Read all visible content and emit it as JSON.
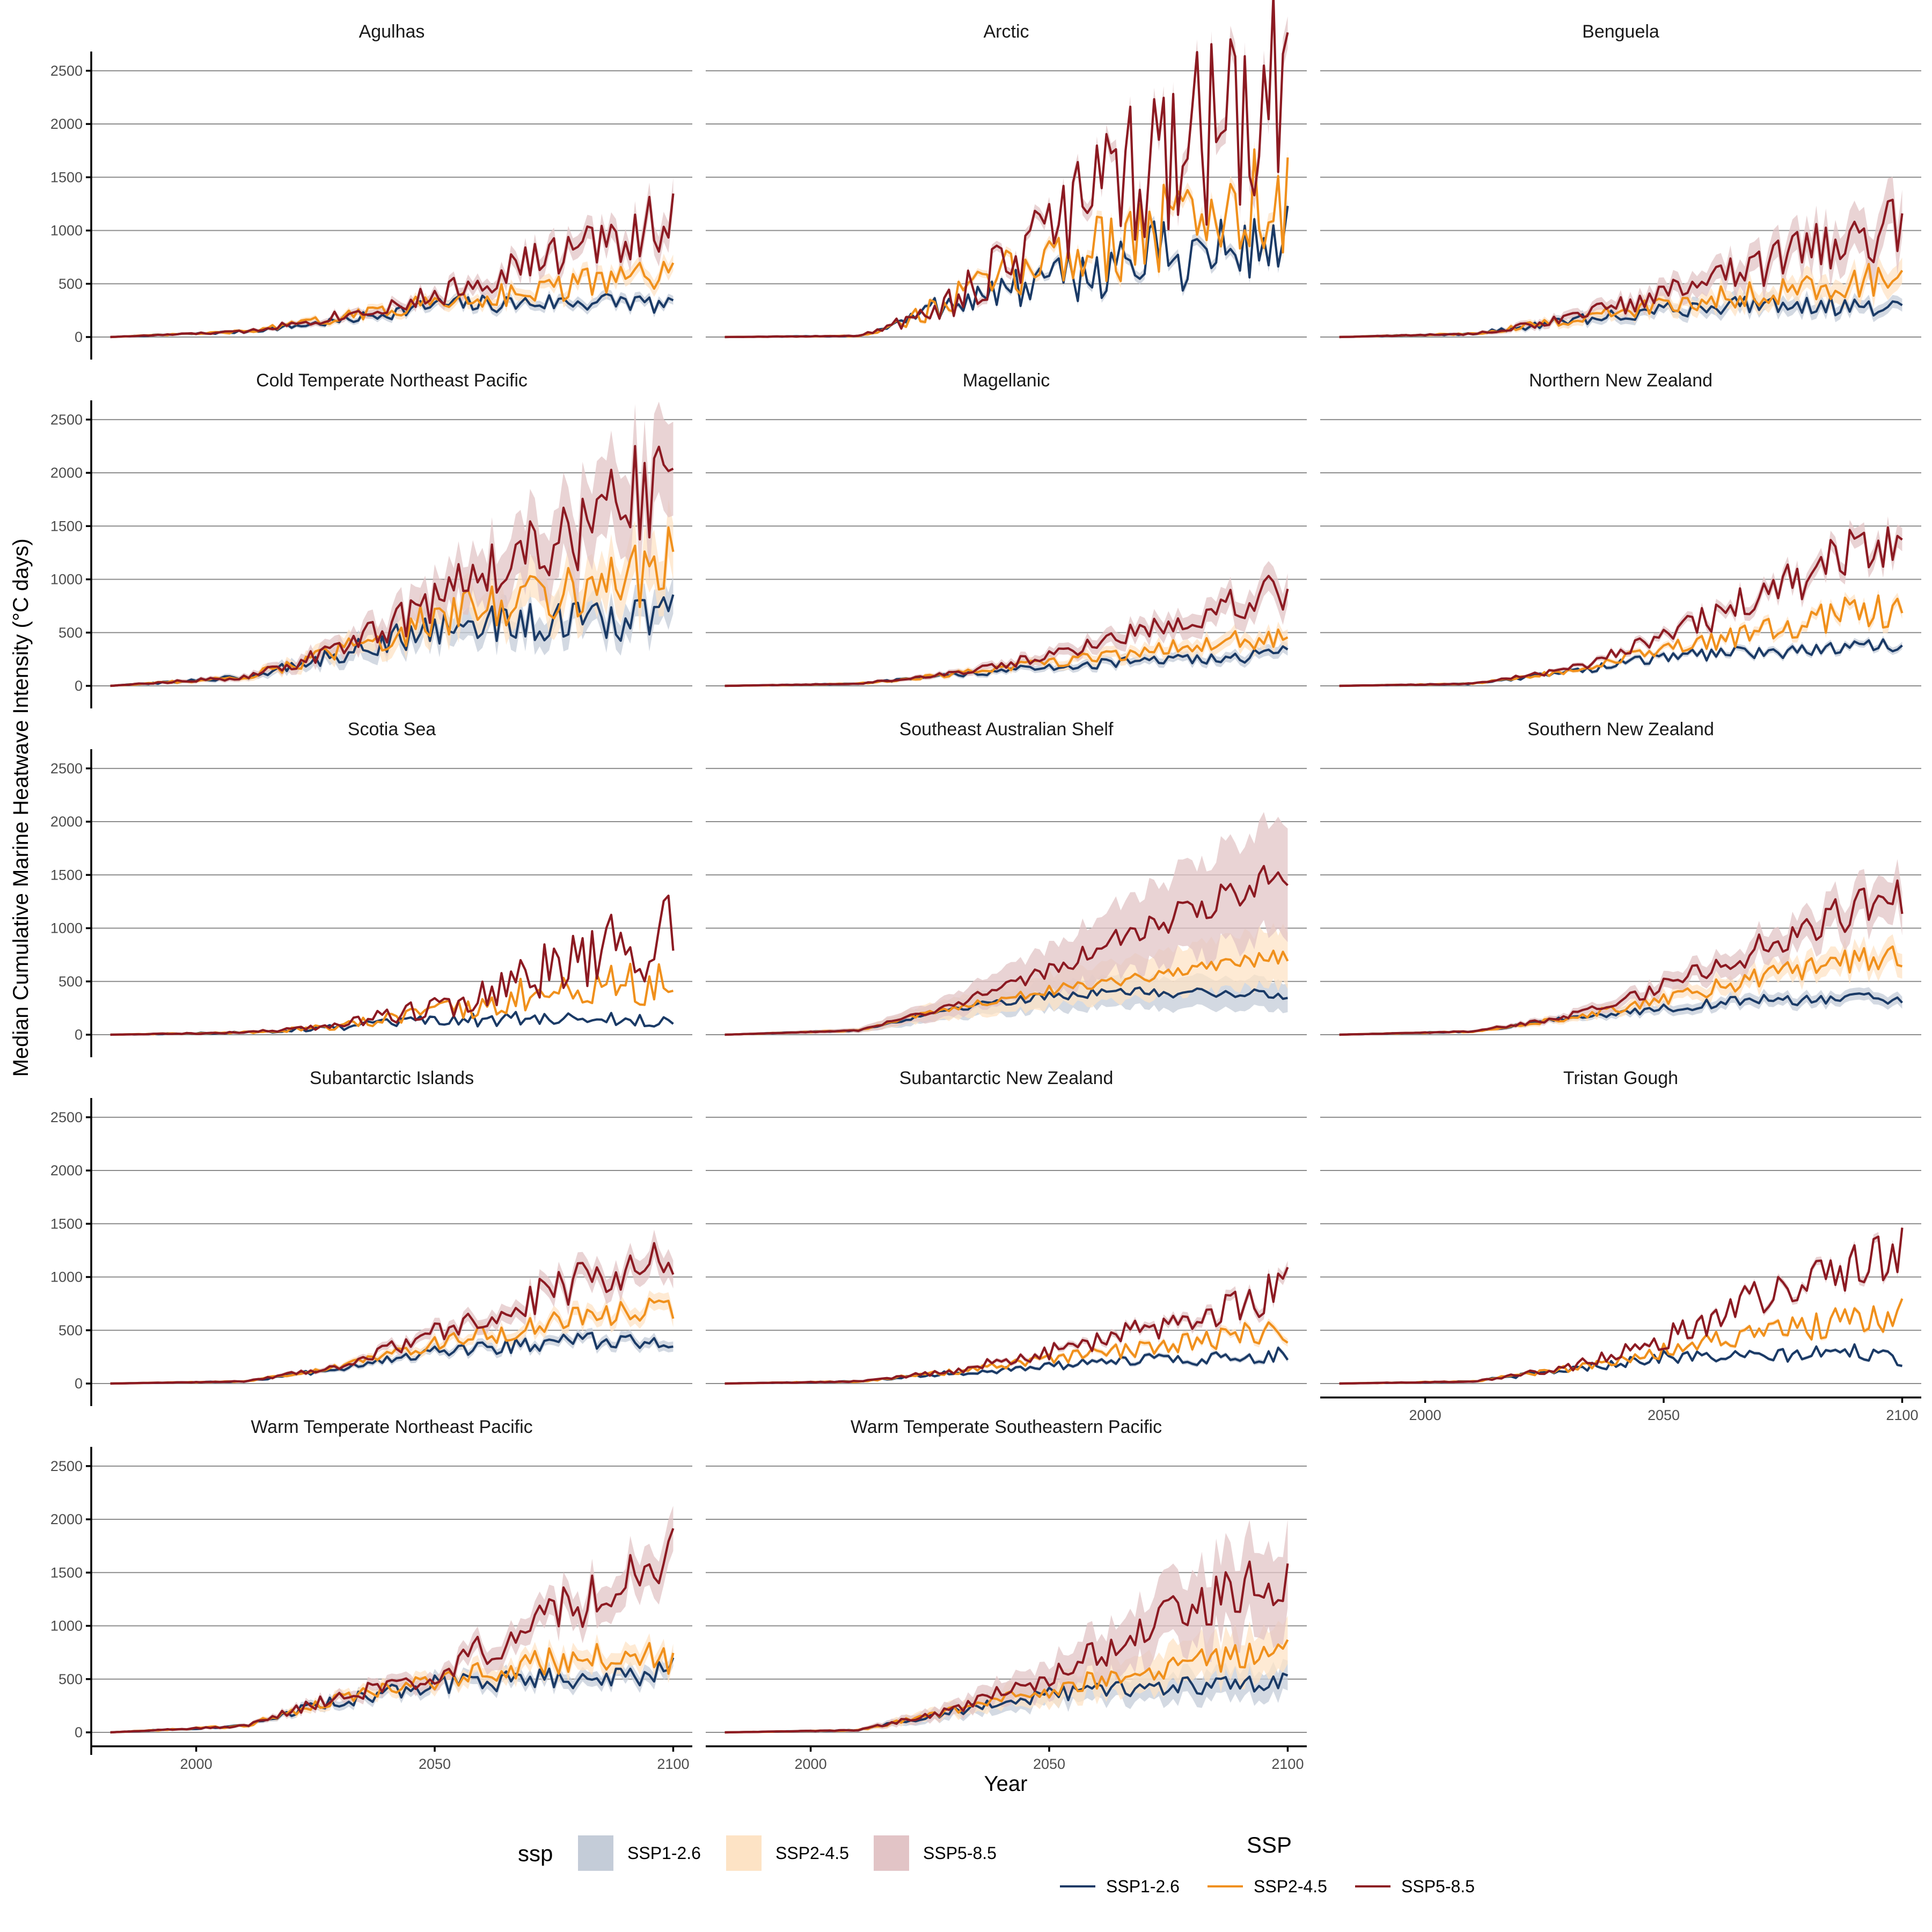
{
  "chart_data": {
    "type": "line",
    "ylabel": "Median Cumulative Marine Heatwave Intensity (°C days)",
    "xlabel": "Year",
    "xlim": [
      1982,
      2100
    ],
    "ylim": [
      0,
      2500
    ],
    "xticks": [
      2000,
      2050,
      2100
    ],
    "yticks": [
      0,
      500,
      1000,
      1500,
      2000,
      2500
    ],
    "grid": "horizontal-major",
    "x_range_description": "annual values 1982-2100",
    "series_names": [
      "SSP1-2.6",
      "SSP2-4.5",
      "SSP5-8.5"
    ],
    "series_colors": {
      "SSP1-2.6": "#1a3a66",
      "SSP2-4.5": "#f0901c",
      "SSP5-8.5": "#8c1a22"
    },
    "ribbon_colors": {
      "SSP1-2.6": "#c4ccd8",
      "SSP2-4.5": "#fde3c5",
      "SSP5-8.5": "#e2c4c6"
    },
    "legend": {
      "ribbon_title": "ssp",
      "line_title": "SSP",
      "labels": [
        "SSP1-2.6",
        "SSP2-4.5",
        "SSP5-8.5"
      ],
      "position": "bottom"
    },
    "panels": [
      {
        "title": "Agulhas",
        "start": 1982,
        "noise": 0.28,
        "band": 0.12,
        "series": [
          {
            "name": "SSP1-2.6",
            "x": [
              1982,
              2010,
              2030,
              2050,
              2070,
              2090,
              2100
            ],
            "y": [
              0,
              50,
              150,
              300,
              320,
              340,
              280
            ]
          },
          {
            "name": "SSP2-4.5",
            "x": [
              1982,
              2010,
              2030,
              2050,
              2070,
              2090,
              2100
            ],
            "y": [
              0,
              50,
              180,
              330,
              430,
              550,
              580
            ]
          },
          {
            "name": "SSP5-8.5",
            "x": [
              1982,
              2010,
              2030,
              2050,
              2070,
              2090,
              2100
            ],
            "y": [
              0,
              50,
              200,
              380,
              700,
              950,
              1150
            ]
          }
        ]
      },
      {
        "title": "Arctic",
        "start": 1982,
        "noise": 0.45,
        "band": 0.06,
        "series": [
          {
            "name": "SSP1-2.6",
            "x": [
              1982,
              2010,
              2020,
              2030,
              2050,
              2070,
              2090,
              2100
            ],
            "y": [
              0,
              10,
              150,
              350,
              500,
              750,
              800,
              950
            ]
          },
          {
            "name": "SSP2-4.5",
            "x": [
              1982,
              2010,
              2020,
              2030,
              2050,
              2070,
              2090,
              2100
            ],
            "y": [
              0,
              10,
              150,
              350,
              750,
              1000,
              1200,
              1350
            ]
          },
          {
            "name": "SSP5-8.5",
            "x": [
              1982,
              2010,
              2020,
              2030,
              2050,
              2070,
              2090,
              2100
            ],
            "y": [
              0,
              10,
              150,
              350,
              1000,
              1600,
              2050,
              2380
            ]
          }
        ]
      },
      {
        "title": "Benguela",
        "start": 1982,
        "noise": 0.3,
        "band": 0.2,
        "series": [
          {
            "name": "SSP1-2.6",
            "x": [
              1982,
              2010,
              2030,
              2050,
              2070,
              2090,
              2100
            ],
            "y": [
              0,
              30,
              150,
              250,
              330,
              280,
              260
            ]
          },
          {
            "name": "SSP2-4.5",
            "x": [
              1982,
              2010,
              2030,
              2050,
              2070,
              2090,
              2100
            ],
            "y": [
              0,
              30,
              160,
              300,
              420,
              520,
              560
            ]
          },
          {
            "name": "SSP5-8.5",
            "x": [
              1982,
              2010,
              2030,
              2050,
              2070,
              2090,
              2100
            ],
            "y": [
              0,
              30,
              170,
              400,
              650,
              950,
              1070
            ]
          }
        ]
      },
      {
        "title": "Cold Temperate Northeast Pacific",
        "start": 1982,
        "noise": 0.3,
        "band": 0.22,
        "series": [
          {
            "name": "SSP1-2.6",
            "x": [
              1982,
              2010,
              2030,
              2050,
              2070,
              2090,
              2100
            ],
            "y": [
              0,
              80,
              300,
              550,
              600,
              600,
              780
            ]
          },
          {
            "name": "SSP2-4.5",
            "x": [
              1982,
              2010,
              2030,
              2050,
              2070,
              2090,
              2100
            ],
            "y": [
              0,
              80,
              320,
              620,
              850,
              1000,
              1180
            ]
          },
          {
            "name": "SSP5-8.5",
            "x": [
              1982,
              2010,
              2030,
              2050,
              2070,
              2090,
              2100
            ],
            "y": [
              0,
              80,
              340,
              800,
              1350,
              1700,
              1970
            ]
          }
        ]
      },
      {
        "title": "Magellanic",
        "start": 1982,
        "noise": 0.22,
        "band": 0.15,
        "series": [
          {
            "name": "SSP1-2.6",
            "x": [
              1982,
              2010,
              2030,
              2050,
              2070,
              2090,
              2100
            ],
            "y": [
              0,
              20,
              100,
              180,
              230,
              270,
              330
            ]
          },
          {
            "name": "SSP2-4.5",
            "x": [
              1982,
              2010,
              2030,
              2050,
              2070,
              2090,
              2100
            ],
            "y": [
              0,
              20,
              110,
              220,
              330,
              430,
              450
            ]
          },
          {
            "name": "SSP5-8.5",
            "x": [
              1982,
              2010,
              2030,
              2050,
              2070,
              2090,
              2100
            ],
            "y": [
              0,
              20,
              120,
              280,
              530,
              800,
              920
            ]
          }
        ]
      },
      {
        "title": "Northern New Zealand",
        "start": 1982,
        "noise": 0.22,
        "band": 0.07,
        "series": [
          {
            "name": "SSP1-2.6",
            "x": [
              1982,
              2010,
              2030,
              2050,
              2070,
              2090,
              2100
            ],
            "y": [
              0,
              20,
              130,
              270,
              330,
              350,
              380
            ]
          },
          {
            "name": "SSP2-4.5",
            "x": [
              1982,
              2010,
              2030,
              2050,
              2070,
              2090,
              2100
            ],
            "y": [
              0,
              20,
              140,
              330,
              500,
              700,
              700
            ]
          },
          {
            "name": "SSP5-8.5",
            "x": [
              1982,
              2010,
              2030,
              2050,
              2070,
              2090,
              2100
            ],
            "y": [
              0,
              20,
              150,
              450,
              850,
              1250,
              1440
            ]
          }
        ]
      },
      {
        "title": "Scotia Sea",
        "start": 1982,
        "noise": 0.45,
        "band": 0,
        "series": [
          {
            "name": "SSP1-2.6",
            "x": [
              1982,
              2010,
              2030,
              2050,
              2070,
              2090,
              2100
            ],
            "y": [
              0,
              20,
              70,
              130,
              150,
              140,
              110
            ]
          },
          {
            "name": "SSP2-4.5",
            "x": [
              1982,
              2010,
              2030,
              2050,
              2070,
              2090,
              2100
            ],
            "y": [
              0,
              20,
              80,
              200,
              380,
              460,
              470
            ]
          },
          {
            "name": "SSP5-8.5",
            "x": [
              1982,
              2010,
              2030,
              2050,
              2070,
              2090,
              2100
            ],
            "y": [
              0,
              20,
              90,
              250,
              550,
              820,
              950
            ]
          }
        ]
      },
      {
        "title": "Southeast Australian Shelf",
        "start": 1982,
        "noise": 0.12,
        "band": 0.35,
        "series": [
          {
            "name": "SSP1-2.6",
            "x": [
              1982,
              2010,
              2030,
              2050,
              2070,
              2090,
              2100
            ],
            "y": [
              0,
              40,
              250,
              370,
              400,
              390,
              360
            ]
          },
          {
            "name": "SSP2-4.5",
            "x": [
              1982,
              2010,
              2030,
              2050,
              2070,
              2090,
              2100
            ],
            "y": [
              0,
              40,
              260,
              420,
              550,
              700,
              730
            ]
          },
          {
            "name": "SSP5-8.5",
            "x": [
              1982,
              2010,
              2030,
              2050,
              2070,
              2090,
              2100
            ],
            "y": [
              0,
              40,
              280,
              600,
              1000,
              1350,
              1500
            ]
          }
        ]
      },
      {
        "title": "Southern New Zealand",
        "start": 1982,
        "noise": 0.18,
        "band": 0.15,
        "series": [
          {
            "name": "SSP1-2.6",
            "x": [
              1982,
              2010,
              2030,
              2050,
              2070,
              2090,
              2100
            ],
            "y": [
              0,
              30,
              150,
              250,
              330,
              330,
              330
            ]
          },
          {
            "name": "SSP2-4.5",
            "x": [
              1982,
              2010,
              2030,
              2050,
              2070,
              2090,
              2100
            ],
            "y": [
              0,
              30,
              160,
              330,
              530,
              700,
              720
            ]
          },
          {
            "name": "SSP5-8.5",
            "x": [
              1982,
              2010,
              2030,
              2050,
              2070,
              2090,
              2100
            ],
            "y": [
              0,
              30,
              170,
              450,
              800,
              1150,
              1300
            ]
          }
        ]
      },
      {
        "title": "Subantarctic Islands",
        "start": 1982,
        "noise": 0.2,
        "band": 0.1,
        "series": [
          {
            "name": "SSP1-2.6",
            "x": [
              1982,
              2010,
              2030,
              2050,
              2070,
              2090,
              2100
            ],
            "y": [
              0,
              20,
              140,
              300,
              370,
              420,
              400
            ]
          },
          {
            "name": "SSP2-4.5",
            "x": [
              1982,
              2010,
              2030,
              2050,
              2070,
              2090,
              2100
            ],
            "y": [
              0,
              20,
              150,
              370,
              520,
              680,
              720
            ]
          },
          {
            "name": "SSP5-8.5",
            "x": [
              1982,
              2010,
              2030,
              2050,
              2070,
              2090,
              2100
            ],
            "y": [
              0,
              20,
              160,
              470,
              800,
              1100,
              1240
            ]
          }
        ]
      },
      {
        "title": "Subantarctic New Zealand",
        "start": 1982,
        "noise": 0.25,
        "band": 0.06,
        "series": [
          {
            "name": "SSP1-2.6",
            "x": [
              1982,
              2010,
              2030,
              2050,
              2070,
              2090,
              2100
            ],
            "y": [
              0,
              20,
              100,
              160,
              220,
              240,
              280
            ]
          },
          {
            "name": "SSP2-4.5",
            "x": [
              1982,
              2010,
              2030,
              2050,
              2070,
              2090,
              2100
            ],
            "y": [
              0,
              20,
              110,
              220,
              330,
              460,
              500
            ]
          },
          {
            "name": "SSP5-8.5",
            "x": [
              1982,
              2010,
              2030,
              2050,
              2070,
              2090,
              2100
            ],
            "y": [
              0,
              20,
              120,
              300,
              500,
              760,
              880
            ]
          }
        ]
      },
      {
        "title": "Tristan Gough",
        "start": 1982,
        "noise": 0.25,
        "band": 0.03,
        "series": [
          {
            "name": "SSP1-2.6",
            "x": [
              1982,
              2010,
              2030,
              2050,
              2070,
              2090,
              2100
            ],
            "y": [
              0,
              20,
              130,
              250,
              250,
              300,
              220
            ]
          },
          {
            "name": "SSP2-4.5",
            "x": [
              1982,
              2010,
              2030,
              2050,
              2070,
              2090,
              2100
            ],
            "y": [
              0,
              20,
              140,
              300,
              480,
              600,
              650
            ]
          },
          {
            "name": "SSP5-8.5",
            "x": [
              1982,
              2010,
              2030,
              2050,
              2070,
              2090,
              2100
            ],
            "y": [
              0,
              20,
              150,
              420,
              800,
              1150,
              1220
            ]
          }
        ]
      },
      {
        "title": "Warm Temperate Northeast Pacific",
        "start": 1982,
        "noise": 0.2,
        "band": 0.12,
        "series": [
          {
            "name": "SSP1-2.6",
            "x": [
              1982,
              2010,
              2025,
              2050,
              2070,
              2090,
              2100
            ],
            "y": [
              0,
              60,
              250,
              450,
              500,
              500,
              600
            ]
          },
          {
            "name": "SSP2-4.5",
            "x": [
              1982,
              2010,
              2025,
              2050,
              2070,
              2090,
              2100
            ],
            "y": [
              0,
              60,
              260,
              500,
              650,
              750,
              650
            ]
          },
          {
            "name": "SSP5-8.5",
            "x": [
              1982,
              2010,
              2025,
              2050,
              2070,
              2090,
              2100
            ],
            "y": [
              0,
              60,
              270,
              550,
              1000,
              1400,
              1700
            ]
          }
        ]
      },
      {
        "title": "Warm Temperate Southeastern Pacific",
        "start": 1982,
        "noise": 0.2,
        "band": 0.28,
        "series": [
          {
            "name": "SSP1-2.6",
            "x": [
              1982,
              2010,
              2030,
              2050,
              2070,
              2090,
              2100
            ],
            "y": [
              0,
              20,
              200,
              350,
              420,
              450,
              470
            ]
          },
          {
            "name": "SSP2-4.5",
            "x": [
              1982,
              2010,
              2030,
              2050,
              2070,
              2090,
              2100
            ],
            "y": [
              0,
              20,
              210,
              400,
              600,
              700,
              780
            ]
          },
          {
            "name": "SSP5-8.5",
            "x": [
              1982,
              2010,
              2030,
              2050,
              2070,
              2090,
              2100
            ],
            "y": [
              0,
              20,
              220,
              520,
              950,
              1350,
              1450
            ]
          }
        ]
      }
    ]
  }
}
